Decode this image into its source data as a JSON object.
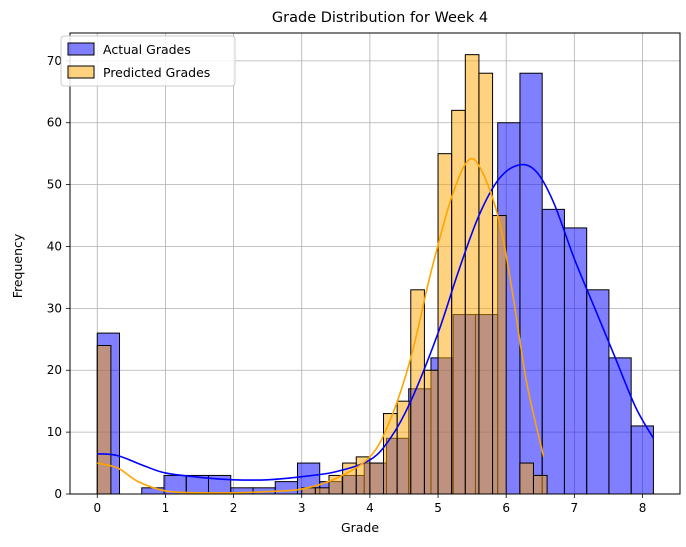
{
  "chart_data": {
    "type": "bar",
    "title": "Grade Distribution for Week 4",
    "xlabel": "Grade",
    "ylabel": "Frequency",
    "xlim": [
      -0.4,
      8.55
    ],
    "ylim": [
      0,
      74.5
    ],
    "xticks": [
      0,
      1,
      2,
      3,
      4,
      5,
      6,
      7,
      8
    ],
    "yticks": [
      0,
      10,
      20,
      30,
      40,
      50,
      60,
      70
    ],
    "grid": true,
    "legend_position": "top-left",
    "series": [
      {
        "name": "Actual Grades",
        "color": "#0000ff",
        "bin_edges": [
          0.0,
          0.3264,
          0.6528,
          0.9792,
          1.3056,
          1.632,
          1.9584,
          2.2848,
          2.6112,
          2.9376,
          3.264,
          3.5904,
          3.9168,
          4.2432,
          4.5696,
          4.896,
          5.2224,
          5.5488,
          5.8752,
          6.2016,
          6.528,
          6.8544,
          7.1808,
          7.5072,
          7.8336,
          8.16
        ],
        "counts": [
          26,
          0,
          1,
          3,
          3,
          3,
          1,
          1,
          2,
          5,
          2,
          3,
          5,
          9,
          17,
          22,
          29,
          29,
          60,
          68,
          46,
          43,
          33,
          22,
          11
        ],
        "kde": [
          [
            0.0,
            6.5
          ],
          [
            0.3,
            6.2
          ],
          [
            0.7,
            4.5
          ],
          [
            1.0,
            3.4
          ],
          [
            1.5,
            2.7
          ],
          [
            2.0,
            2.3
          ],
          [
            2.5,
            2.3
          ],
          [
            3.0,
            2.8
          ],
          [
            3.5,
            3.6
          ],
          [
            4.0,
            5.5
          ],
          [
            4.3,
            9.0
          ],
          [
            4.6,
            15
          ],
          [
            5.0,
            26
          ],
          [
            5.3,
            36
          ],
          [
            5.6,
            45
          ],
          [
            5.9,
            51
          ],
          [
            6.2,
            53.2
          ],
          [
            6.45,
            52
          ],
          [
            6.7,
            47
          ],
          [
            7.0,
            38
          ],
          [
            7.3,
            30
          ],
          [
            7.6,
            22
          ],
          [
            7.9,
            14
          ],
          [
            8.16,
            9
          ]
        ]
      },
      {
        "name": "Predicted Grades",
        "color": "#ffa500",
        "bin_edges": [
          0.0,
          0.2,
          0.4,
          0.6,
          0.8,
          1.0,
          1.2,
          1.4,
          1.6,
          1.8,
          2.0,
          2.2,
          2.4,
          2.6,
          2.8,
          3.0,
          3.2,
          3.4,
          3.6,
          3.8,
          4.0,
          4.2,
          4.4,
          4.6,
          4.8,
          5.0,
          5.2,
          5.4,
          5.6,
          5.8,
          6.0,
          6.2,
          6.4,
          6.6
        ],
        "counts": [
          24,
          0,
          0,
          0,
          0,
          0,
          0,
          0,
          0,
          0,
          0,
          0,
          0,
          0,
          0,
          1,
          1,
          3,
          5,
          6,
          5,
          13,
          15,
          33,
          20,
          55,
          62,
          71,
          68,
          45,
          0,
          5,
          3
        ],
        "kde": [
          [
            0.0,
            5.0
          ],
          [
            0.3,
            4.2
          ],
          [
            0.6,
            2.0
          ],
          [
            1.0,
            0.5
          ],
          [
            1.5,
            0.2
          ],
          [
            2.0,
            0.2
          ],
          [
            2.5,
            0.4
          ],
          [
            3.0,
            0.8
          ],
          [
            3.5,
            2.5
          ],
          [
            4.0,
            6
          ],
          [
            4.3,
            12
          ],
          [
            4.6,
            22
          ],
          [
            4.9,
            36
          ],
          [
            5.2,
            48
          ],
          [
            5.45,
            54
          ],
          [
            5.65,
            52
          ],
          [
            5.9,
            44
          ],
          [
            6.1,
            32
          ],
          [
            6.3,
            18
          ],
          [
            6.55,
            6
          ]
        ]
      }
    ]
  }
}
